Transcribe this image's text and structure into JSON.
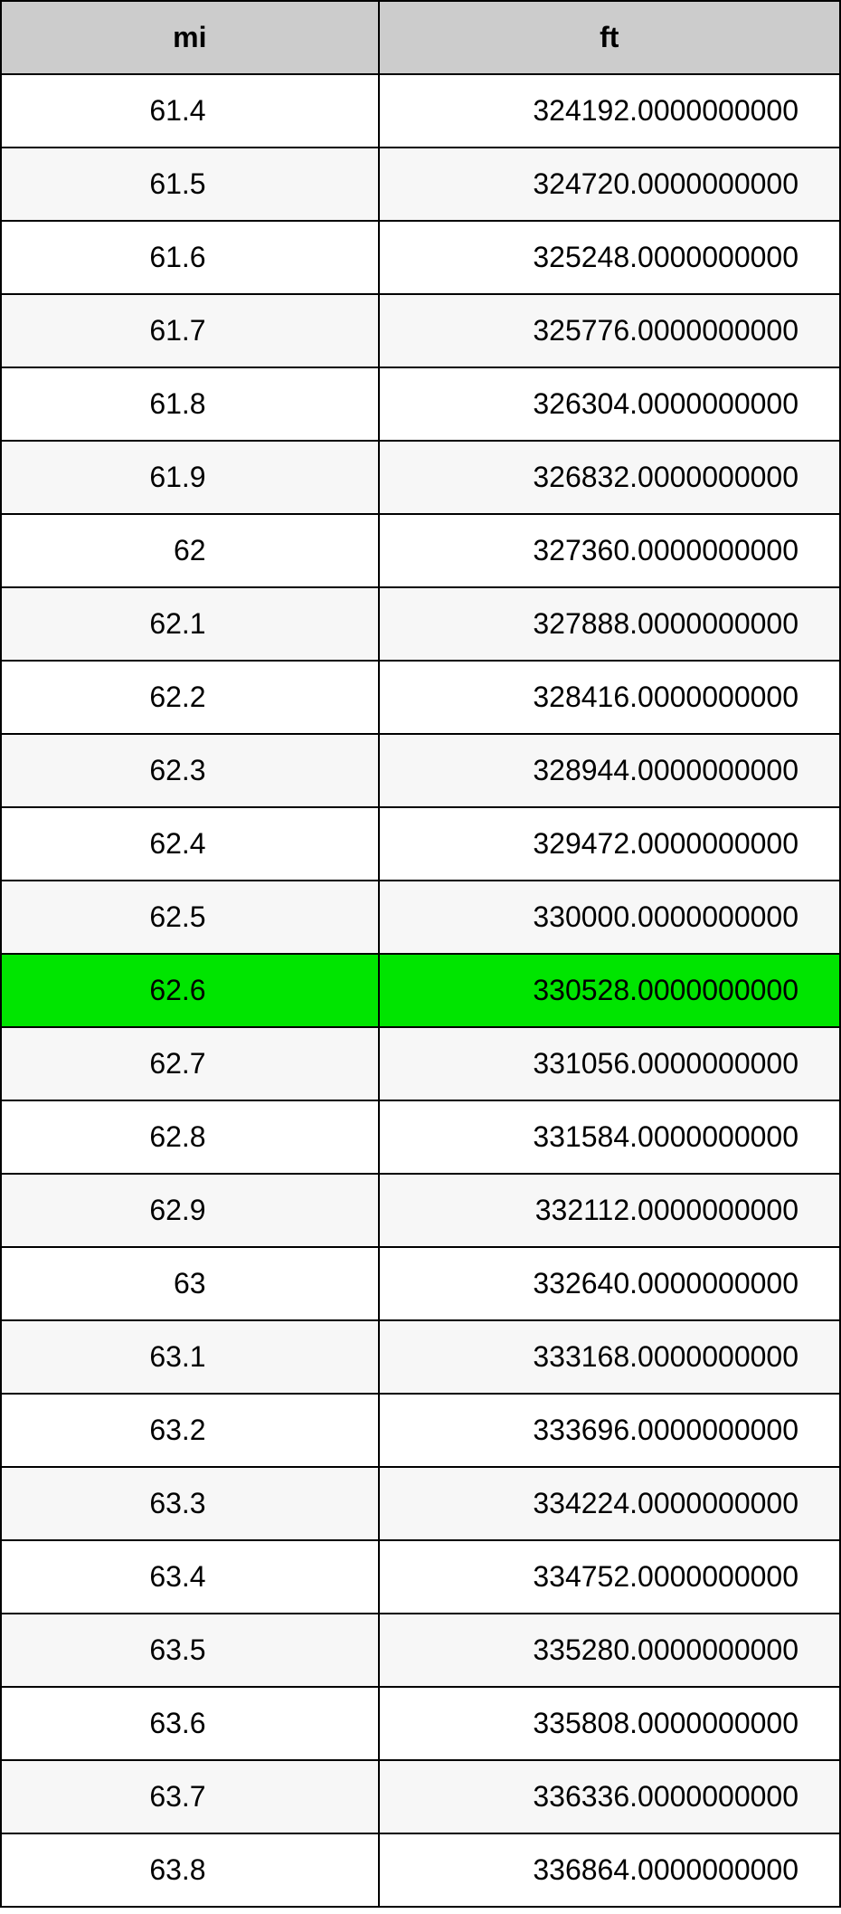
{
  "table": {
    "columns": [
      {
        "key": "mi",
        "label": "mi"
      },
      {
        "key": "ft",
        "label": "ft"
      }
    ],
    "highlight_color": "#00e500",
    "header_bg": "#cccccc",
    "row_even_bg": "#f7f7f7",
    "row_odd_bg": "#ffffff",
    "border_color": "#000000",
    "font_size": 32,
    "rows": [
      {
        "mi": "61.4",
        "ft": "324192.0000000000",
        "highlight": false
      },
      {
        "mi": "61.5",
        "ft": "324720.0000000000",
        "highlight": false
      },
      {
        "mi": "61.6",
        "ft": "325248.0000000000",
        "highlight": false
      },
      {
        "mi": "61.7",
        "ft": "325776.0000000000",
        "highlight": false
      },
      {
        "mi": "61.8",
        "ft": "326304.0000000000",
        "highlight": false
      },
      {
        "mi": "61.9",
        "ft": "326832.0000000000",
        "highlight": false
      },
      {
        "mi": "62",
        "ft": "327360.0000000000",
        "highlight": false
      },
      {
        "mi": "62.1",
        "ft": "327888.0000000000",
        "highlight": false
      },
      {
        "mi": "62.2",
        "ft": "328416.0000000000",
        "highlight": false
      },
      {
        "mi": "62.3",
        "ft": "328944.0000000000",
        "highlight": false
      },
      {
        "mi": "62.4",
        "ft": "329472.0000000000",
        "highlight": false
      },
      {
        "mi": "62.5",
        "ft": "330000.0000000000",
        "highlight": false
      },
      {
        "mi": "62.6",
        "ft": "330528.0000000000",
        "highlight": true
      },
      {
        "mi": "62.7",
        "ft": "331056.0000000000",
        "highlight": false
      },
      {
        "mi": "62.8",
        "ft": "331584.0000000000",
        "highlight": false
      },
      {
        "mi": "62.9",
        "ft": "332112.0000000000",
        "highlight": false
      },
      {
        "mi": "63",
        "ft": "332640.0000000000",
        "highlight": false
      },
      {
        "mi": "63.1",
        "ft": "333168.0000000000",
        "highlight": false
      },
      {
        "mi": "63.2",
        "ft": "333696.0000000000",
        "highlight": false
      },
      {
        "mi": "63.3",
        "ft": "334224.0000000000",
        "highlight": false
      },
      {
        "mi": "63.4",
        "ft": "334752.0000000000",
        "highlight": false
      },
      {
        "mi": "63.5",
        "ft": "335280.0000000000",
        "highlight": false
      },
      {
        "mi": "63.6",
        "ft": "335808.0000000000",
        "highlight": false
      },
      {
        "mi": "63.7",
        "ft": "336336.0000000000",
        "highlight": false
      },
      {
        "mi": "63.8",
        "ft": "336864.0000000000",
        "highlight": false
      }
    ]
  }
}
